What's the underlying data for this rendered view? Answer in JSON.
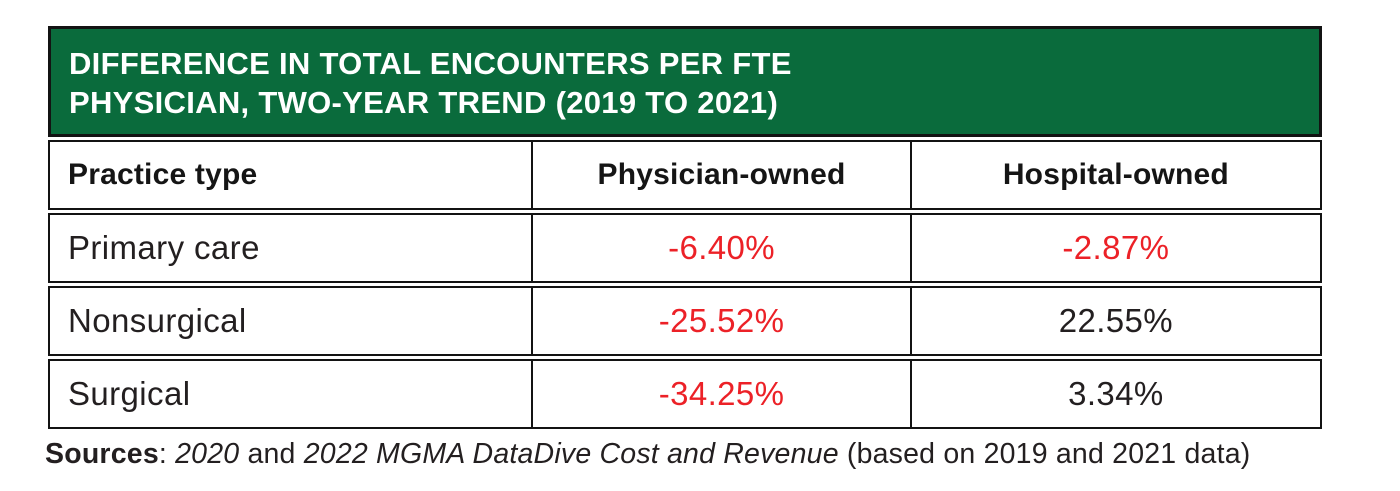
{
  "colors": {
    "header_green": "#0A6B3C",
    "negative_red": "#EC2127",
    "border_black": "#131313",
    "text_black": "#231F20",
    "title_text": "#FFFFFF"
  },
  "header": {
    "title_line1": "DIFFERENCE IN TOTAL ENCOUNTERS PER FTE",
    "title_line2": "PHYSICIAN, TWO-YEAR TREND (2019 TO 2021)"
  },
  "table": {
    "columns": [
      "Practice type",
      "Physician-owned",
      "Hospital-owned"
    ],
    "rows": [
      {
        "label": "Primary care",
        "cells": [
          {
            "text": "-6.40%",
            "negative": true
          },
          {
            "text": "-2.87%",
            "negative": true
          }
        ]
      },
      {
        "label": "Nonsurgical",
        "cells": [
          {
            "text": "-25.52%",
            "negative": true
          },
          {
            "text": "22.55%",
            "negative": false
          }
        ]
      },
      {
        "label": "Surgical",
        "cells": [
          {
            "text": "-34.25%",
            "negative": true
          },
          {
            "text": "3.34%",
            "negative": false
          }
        ]
      }
    ]
  },
  "source_note": {
    "prefix_bold": "Sources",
    "separator": ": ",
    "italic_1": "2020",
    "middle": " and ",
    "italic_2": "2022 MGMA DataDive Cost and Revenue",
    "suffix": " (based on 2019 and 2021 data)"
  },
  "chart_data": {
    "type": "table",
    "title": "DIFFERENCE IN TOTAL ENCOUNTERS PER FTE PHYSICIAN, TWO-YEAR TREND (2019 TO 2021)",
    "columns": [
      "Practice type",
      "Physician-owned",
      "Hospital-owned"
    ],
    "categories": [
      "Primary care",
      "Nonsurgical",
      "Surgical"
    ],
    "series": [
      {
        "name": "Physician-owned",
        "values": [
          -6.4,
          -25.52,
          -34.25
        ]
      },
      {
        "name": "Hospital-owned",
        "values": [
          -2.87,
          22.55,
          3.34
        ]
      }
    ],
    "rows": [
      [
        "Primary care",
        "-6.40%",
        "-2.87%"
      ],
      [
        "Nonsurgical",
        "-25.52%",
        "22.55%"
      ],
      [
        "Surgical",
        "-34.25%",
        "3.34%"
      ]
    ],
    "negative_values_shown_in_red": true,
    "source": "Sources: 2020 and 2022 MGMA DataDive Cost and Revenue (based on 2019 and 2021 data)"
  }
}
